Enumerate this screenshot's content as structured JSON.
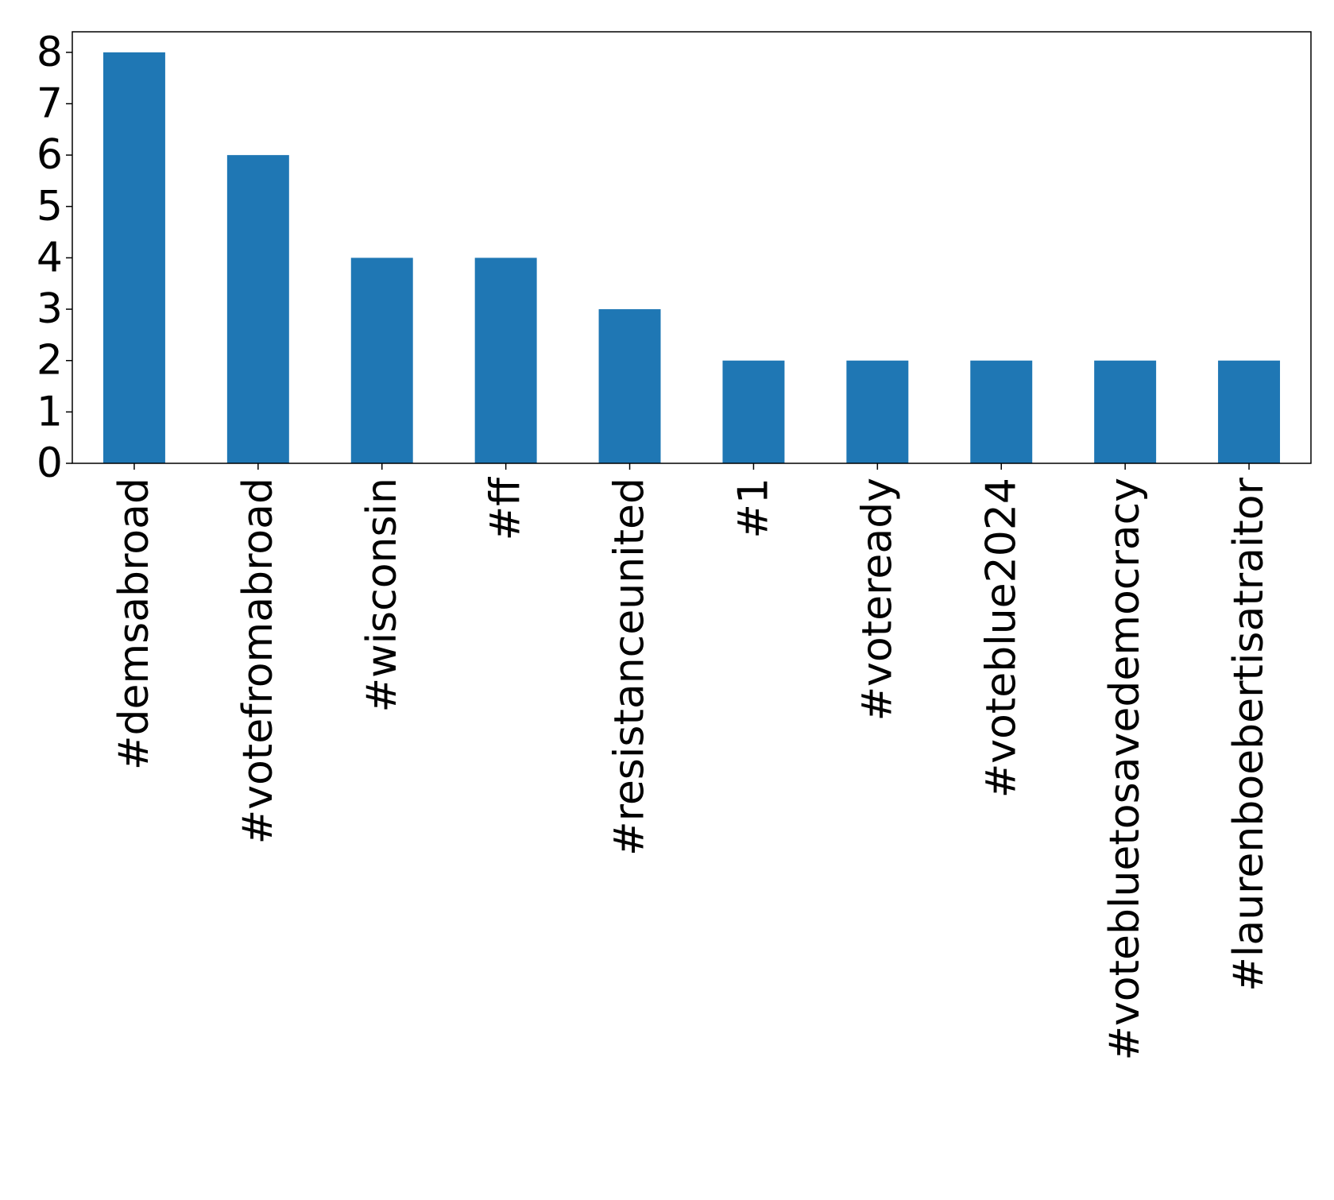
{
  "chart_data": {
    "type": "bar",
    "title": "",
    "xlabel": "",
    "ylabel": "",
    "categories": [
      "#demsabroad",
      "#votefromabroad",
      "#wisconsin",
      "#ff",
      "#resistanceunited",
      "#1",
      "#voteready",
      "#voteblue2024",
      "#votebluetosavedemocracy",
      "#laurenboebertisatraitor"
    ],
    "values": [
      8,
      6,
      4,
      4,
      3,
      2,
      2,
      2,
      2,
      2
    ],
    "ylim": [
      0,
      8.4
    ],
    "yticks": [
      0,
      1,
      2,
      3,
      4,
      5,
      6,
      7,
      8
    ],
    "bar_color": "#1f77b4",
    "grid": false,
    "legend": "none"
  }
}
